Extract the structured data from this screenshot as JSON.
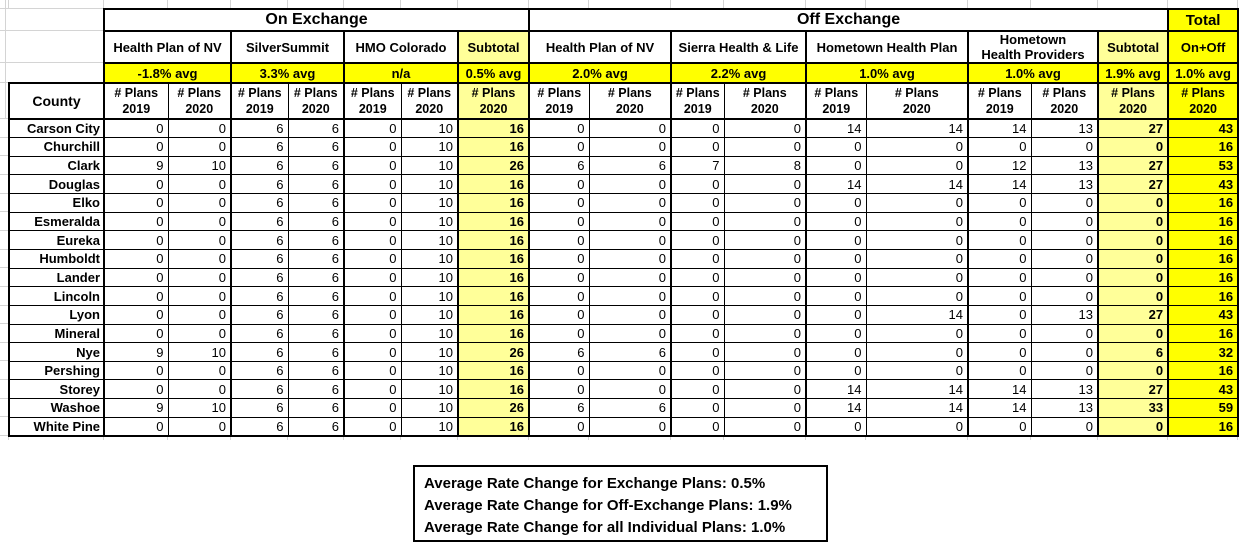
{
  "table": {
    "groups": [
      {
        "label": "On Exchange",
        "span": 7,
        "style": "plain"
      },
      {
        "label": "Off Exchange",
        "span": 9,
        "style": "plain"
      },
      {
        "label": "Total",
        "span": 1,
        "style": "total"
      }
    ],
    "carriers": [
      {
        "label": "Health Plan of NV",
        "avg": "-1.8% avg",
        "cols": 2,
        "style": "plain"
      },
      {
        "label": "SilverSummit",
        "avg": "3.3% avg",
        "cols": 2,
        "style": "plain"
      },
      {
        "label": "HMO Colorado",
        "avg": "n/a",
        "cols": 2,
        "style": "plain"
      },
      {
        "label": "Subtotal",
        "avg": "0.5% avg",
        "cols": 1,
        "style": "subtotal"
      },
      {
        "label": "Health Plan of NV",
        "avg": "2.0% avg",
        "cols": 2,
        "style": "plain"
      },
      {
        "label": "Sierra Health & Life",
        "avg": "2.2% avg",
        "cols": 2,
        "style": "plain"
      },
      {
        "label": "Hometown Health Plan",
        "avg": "1.0% avg",
        "cols": 2,
        "style": "plain"
      },
      {
        "label": "Hometown\nHealth Providers",
        "avg": "1.0% avg",
        "cols": 2,
        "style": "plain"
      },
      {
        "label": "Subtotal",
        "avg": "1.9% avg",
        "cols": 1,
        "style": "subtotal"
      },
      {
        "label": "On+Off",
        "avg": "1.0% avg",
        "cols": 1,
        "style": "total"
      }
    ],
    "county_label": "County",
    "plans_headers": {
      "y2019": "# Plans\n2019",
      "y2020": "# Plans\n2020"
    },
    "rows": [
      {
        "county": "Carson City",
        "values": [
          0,
          0,
          6,
          6,
          0,
          10,
          16,
          0,
          0,
          0,
          0,
          14,
          14,
          14,
          13,
          27,
          43
        ]
      },
      {
        "county": "Churchill",
        "values": [
          0,
          0,
          6,
          6,
          0,
          10,
          16,
          0,
          0,
          0,
          0,
          0,
          0,
          0,
          0,
          0,
          16
        ]
      },
      {
        "county": "Clark",
        "values": [
          9,
          10,
          6,
          6,
          0,
          10,
          26,
          6,
          6,
          7,
          8,
          0,
          0,
          12,
          13,
          27,
          53
        ]
      },
      {
        "county": "Douglas",
        "values": [
          0,
          0,
          6,
          6,
          0,
          10,
          16,
          0,
          0,
          0,
          0,
          14,
          14,
          14,
          13,
          27,
          43
        ]
      },
      {
        "county": "Elko",
        "values": [
          0,
          0,
          6,
          6,
          0,
          10,
          16,
          0,
          0,
          0,
          0,
          0,
          0,
          0,
          0,
          0,
          16
        ]
      },
      {
        "county": "Esmeralda",
        "values": [
          0,
          0,
          6,
          6,
          0,
          10,
          16,
          0,
          0,
          0,
          0,
          0,
          0,
          0,
          0,
          0,
          16
        ]
      },
      {
        "county": "Eureka",
        "values": [
          0,
          0,
          6,
          6,
          0,
          10,
          16,
          0,
          0,
          0,
          0,
          0,
          0,
          0,
          0,
          0,
          16
        ]
      },
      {
        "county": "Humboldt",
        "values": [
          0,
          0,
          6,
          6,
          0,
          10,
          16,
          0,
          0,
          0,
          0,
          0,
          0,
          0,
          0,
          0,
          16
        ]
      },
      {
        "county": "Lander",
        "values": [
          0,
          0,
          6,
          6,
          0,
          10,
          16,
          0,
          0,
          0,
          0,
          0,
          0,
          0,
          0,
          0,
          16
        ]
      },
      {
        "county": "Lincoln",
        "values": [
          0,
          0,
          6,
          6,
          0,
          10,
          16,
          0,
          0,
          0,
          0,
          0,
          0,
          0,
          0,
          0,
          16
        ]
      },
      {
        "county": "Lyon",
        "values": [
          0,
          0,
          6,
          6,
          0,
          10,
          16,
          0,
          0,
          0,
          0,
          0,
          14,
          0,
          13,
          27,
          43
        ]
      },
      {
        "county": "Mineral",
        "values": [
          0,
          0,
          6,
          6,
          0,
          10,
          16,
          0,
          0,
          0,
          0,
          0,
          0,
          0,
          0,
          0,
          16
        ]
      },
      {
        "county": "Nye",
        "values": [
          9,
          10,
          6,
          6,
          0,
          10,
          26,
          6,
          6,
          0,
          0,
          0,
          0,
          0,
          0,
          6,
          32
        ]
      },
      {
        "county": "Pershing",
        "values": [
          0,
          0,
          6,
          6,
          0,
          10,
          16,
          0,
          0,
          0,
          0,
          0,
          0,
          0,
          0,
          0,
          16
        ]
      },
      {
        "county": "Storey",
        "values": [
          0,
          0,
          6,
          6,
          0,
          10,
          16,
          0,
          0,
          0,
          0,
          14,
          14,
          14,
          13,
          27,
          43
        ]
      },
      {
        "county": "Washoe",
        "values": [
          9,
          10,
          6,
          6,
          0,
          10,
          26,
          6,
          6,
          0,
          0,
          14,
          14,
          14,
          13,
          33,
          59
        ]
      },
      {
        "county": "White Pine",
        "values": [
          0,
          0,
          6,
          6,
          0,
          10,
          16,
          0,
          0,
          0,
          0,
          0,
          0,
          0,
          0,
          0,
          16
        ]
      }
    ]
  },
  "notes": {
    "lines": [
      "Average Rate Change for Exchange Plans: 0.5%",
      "Average Rate Change for Off-Exchange Plans: 1.9%",
      "Average Rate Change for all Individual Plans: 1.0%"
    ]
  },
  "colors": {
    "highlight": "#FFFF00",
    "subtotal_highlight": "#FFFF99",
    "border": "#000000",
    "gridline": "#D4D4D4"
  }
}
